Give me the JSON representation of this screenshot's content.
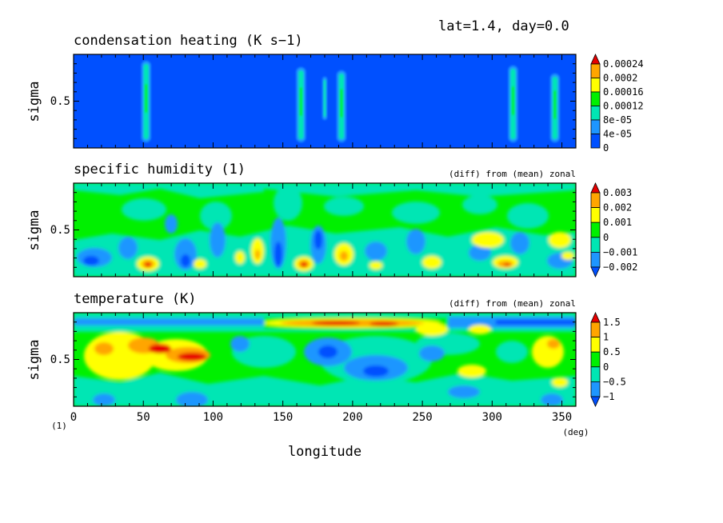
{
  "header": {
    "info": "lat=1.4, day=0.0"
  },
  "colors": {
    "blue": "#0050ff",
    "lightblue": "#1e96ff",
    "cyan": "#00e6b4",
    "green": "#00f000",
    "yellow": "#ffff00",
    "orange": "#ffa500",
    "red": "#e60000"
  },
  "chart_data": [
    {
      "type": "heatmap",
      "title": "condensation heating (K s−1)",
      "subtitle": "",
      "ylabel": "sigma",
      "yticks": [
        "0.5"
      ],
      "xlim": [
        0,
        360
      ],
      "ylim": [
        0,
        1
      ],
      "colorbar": {
        "labels": [
          "0.00024",
          "0.0002",
          "0.00016",
          "0.00012",
          "8e-05",
          "4e-05",
          "0"
        ],
        "fills": [
          "#e60000",
          "#ffa500",
          "#ffff00",
          "#00f000",
          "#00e6b4",
          "#1e96ff",
          "#0050ff"
        ]
      },
      "background": "#0050ff",
      "columns_longitude": [
        52,
        163,
        180,
        192,
        315,
        345
      ]
    },
    {
      "type": "heatmap",
      "title": "specific humidity (1)",
      "subtitle": "(diff) from (mean) zonal",
      "ylabel": "sigma",
      "yticks": [
        "0.5"
      ],
      "xlim": [
        0,
        360
      ],
      "ylim": [
        0,
        1
      ],
      "colorbar": {
        "labels": [
          "0.003",
          "0.002",
          "0.001",
          "0",
          "−0.001",
          "−0.002"
        ],
        "fills": [
          "#e60000",
          "#ffa500",
          "#ffff00",
          "#00f000",
          "#00e6b4",
          "#1e96ff",
          "#0050ff"
        ]
      },
      "background": "#00f000"
    },
    {
      "type": "heatmap",
      "title": "temperature (K)",
      "subtitle": "(diff) from (mean) zonal",
      "ylabel": "sigma",
      "yticks": [
        "0.5"
      ],
      "xlim": [
        0,
        360
      ],
      "ylim": [
        0,
        1
      ],
      "colorbar": {
        "labels": [
          "1.5",
          "1",
          "0.5",
          "0",
          "−0.5",
          "−1"
        ],
        "fills": [
          "#e60000",
          "#ffa500",
          "#ffff00",
          "#00f000",
          "#00e6b4",
          "#1e96ff",
          "#0050ff"
        ]
      },
      "background": "#00f000"
    }
  ],
  "xaxis": {
    "ticks": [
      "0",
      "50",
      "100",
      "150",
      "200",
      "250",
      "300",
      "350"
    ],
    "label": "longitude",
    "unit_right": "(deg)",
    "unit_left": "(1)"
  }
}
